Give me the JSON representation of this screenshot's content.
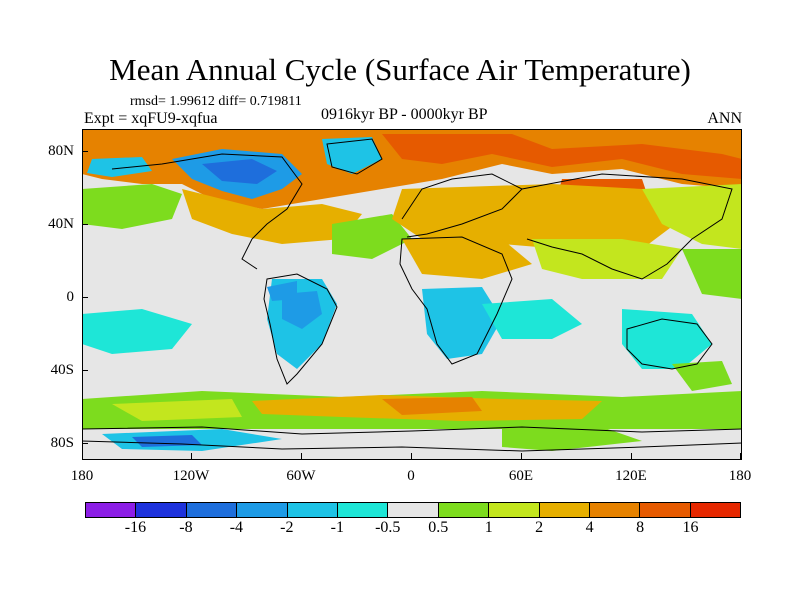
{
  "title": "Mean Annual Cycle (Surface Air Temperature)",
  "stats": "rmsd= 1.99612 diff= 0.719811",
  "experiment": "Expt = xqFU9-xqfua",
  "period": "0916kyr BP - 0000kyr BP",
  "season": "ANN",
  "lat_labels": [
    "80N",
    "40N",
    "0",
    "40S",
    "80S"
  ],
  "lon_labels": [
    "180",
    "120W",
    "60W",
    "0",
    "60E",
    "120E",
    "180"
  ],
  "colorbar": {
    "labels": [
      "-16",
      "-8",
      "-4",
      "-2",
      "-1",
      "-0.5",
      "0.5",
      "1",
      "2",
      "4",
      "8",
      "16"
    ],
    "colors": [
      "#8c1ee6",
      "#1e32dc",
      "#1e6edc",
      "#1e9be6",
      "#1ec3e6",
      "#1ee6d7",
      "#e6e6e6",
      "#7ddc1e",
      "#c3e61e",
      "#e6af00",
      "#e68200",
      "#e65a00",
      "#e62800"
    ]
  },
  "map_colors": {
    "ocean_neutral": "#e6e6e6",
    "warm_strong": "#e65a00",
    "warm": "#e68200",
    "warm_mild": "#e6af00",
    "warm_slight": "#c3e61e",
    "warm_light": "#7ddc1e",
    "cool_light": "#1ee6d7",
    "cool": "#1ec3e6",
    "cool_mid": "#1e9be6",
    "cool_strong": "#1e6edc",
    "coast": "#000000"
  }
}
